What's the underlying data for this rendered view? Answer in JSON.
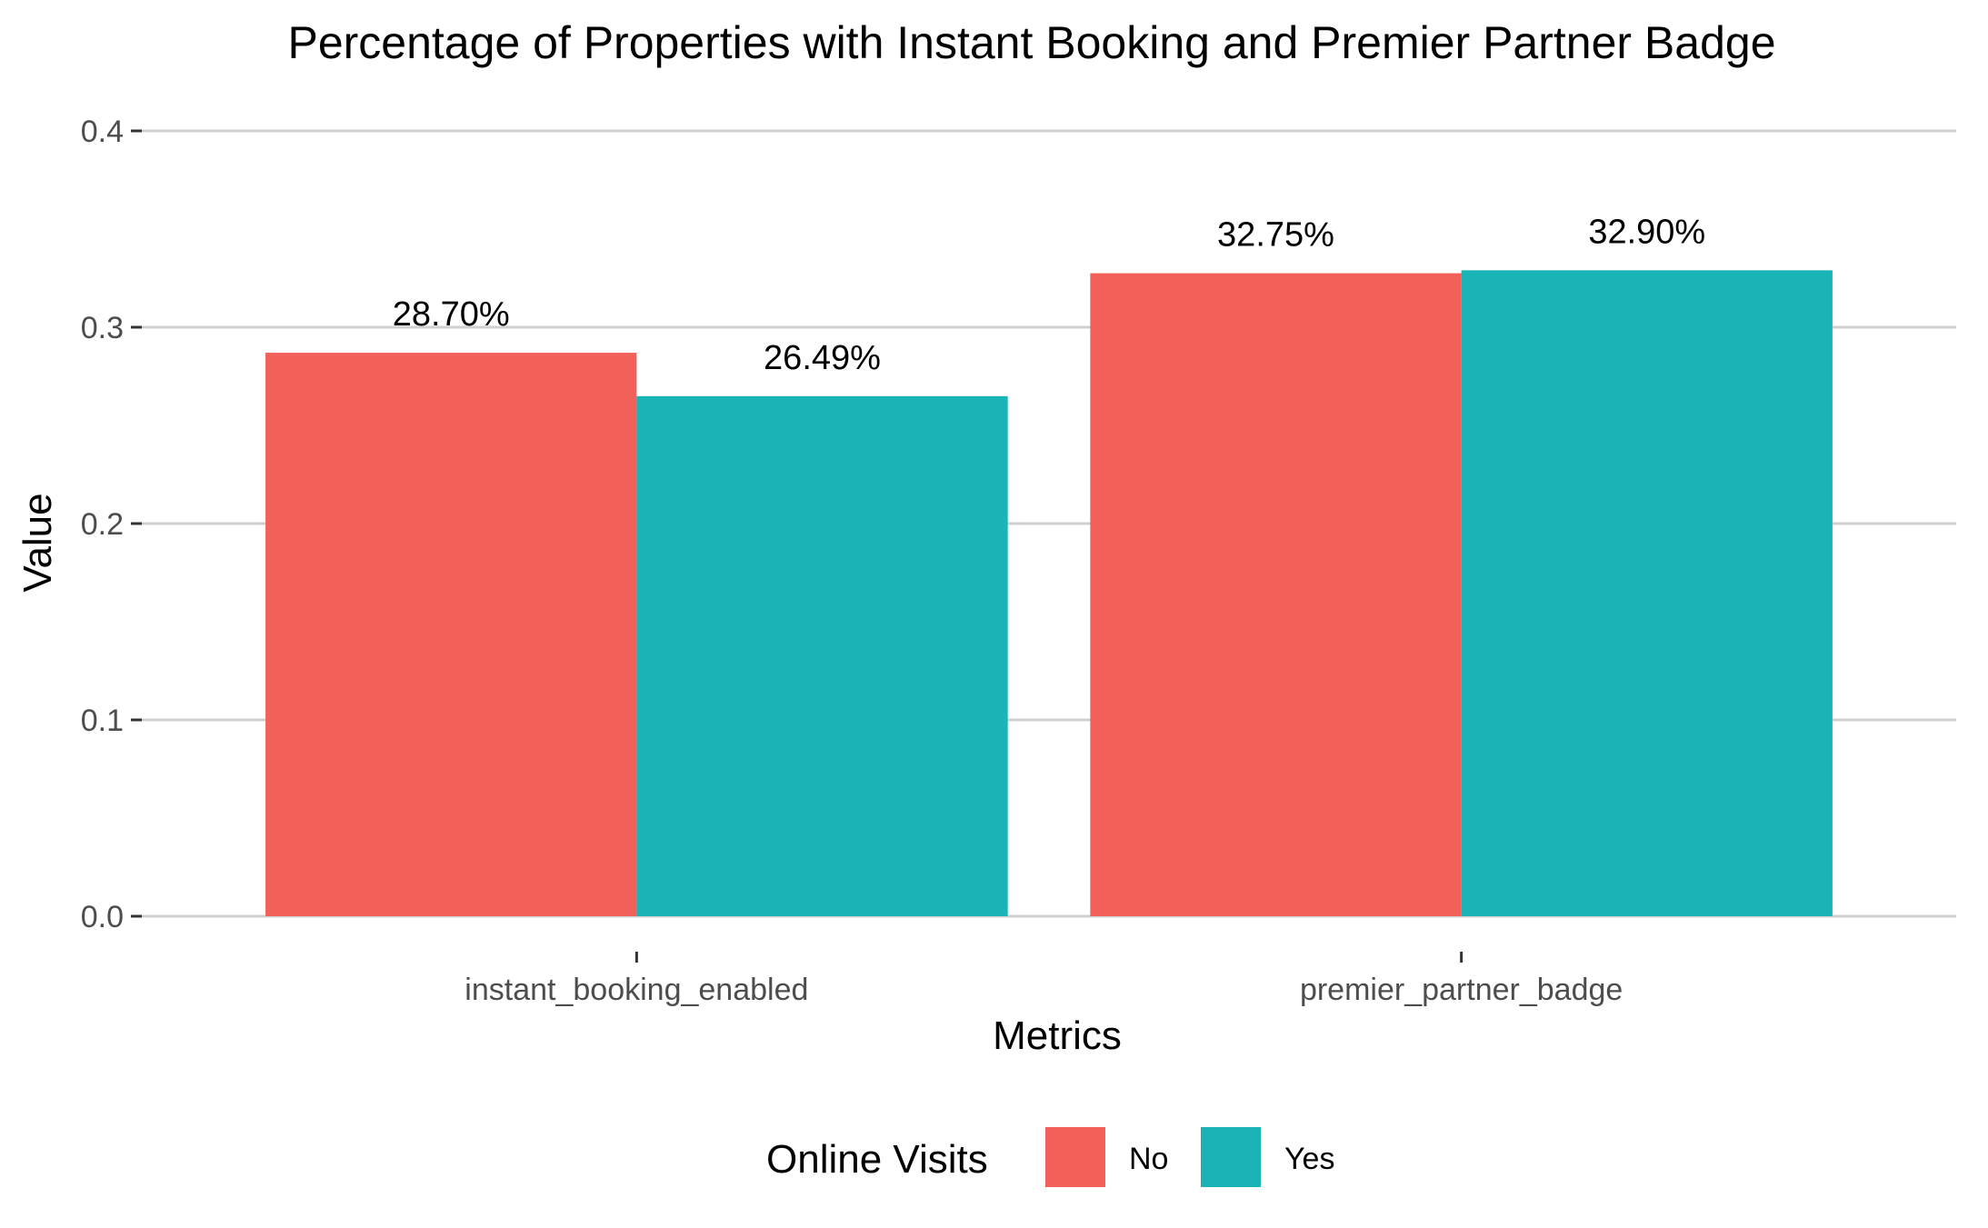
{
  "chart_data": {
    "type": "bar",
    "title": "Percentage of Properties with Instant Booking and Premier Partner Badge",
    "xlabel": "Metrics",
    "ylabel": "Value",
    "categories": [
      "instant_booking_enabled",
      "premier_partner_badge"
    ],
    "series": [
      {
        "name": "No",
        "color": "#F2605A",
        "values": [
          0.287,
          0.3275
        ],
        "labels": [
          "28.70%",
          "32.75%"
        ]
      },
      {
        "name": "Yes",
        "color": "#1AB3B6",
        "values": [
          0.2649,
          0.329
        ],
        "labels": [
          "26.49%",
          "32.90%"
        ]
      }
    ],
    "ylim": [
      0,
      0.4
    ],
    "yticks": [
      "0.0",
      "0.1",
      "0.2",
      "0.3",
      "0.4"
    ],
    "grid": true,
    "legend": {
      "title": "Online Visits",
      "placement": "bottom"
    }
  }
}
